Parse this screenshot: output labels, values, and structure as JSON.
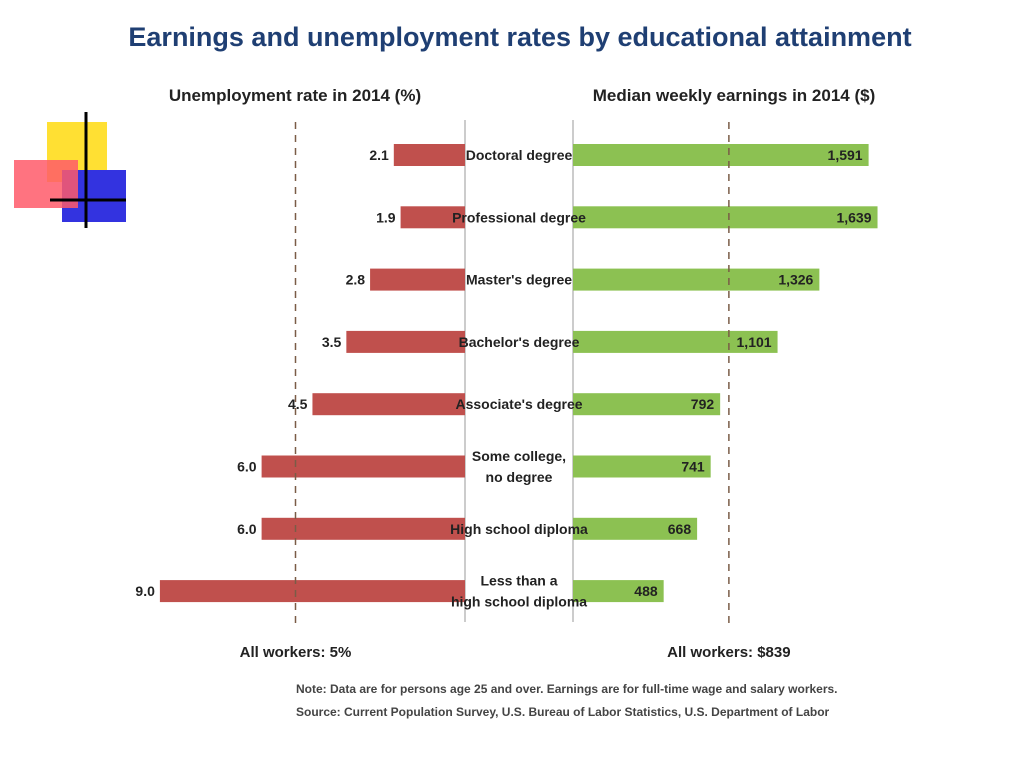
{
  "decor": {
    "colors": {
      "yellow": "#ffe033",
      "red": "#ff5a6a",
      "blue": "#3333e0",
      "line": "#000000"
    }
  },
  "chart_data": {
    "type": "bar",
    "title": "Earnings and unemployment rates by educational attainment",
    "left_panel": {
      "label": "Unemployment rate in 2014 (%)",
      "reference_label": "All workers: 5%",
      "reference_value": 5,
      "color": "#c0504d"
    },
    "right_panel": {
      "label": "Median weekly earnings in 2014 ($)",
      "reference_label": "All workers: $839",
      "reference_value": 839,
      "color": "#8cc152"
    },
    "categories": [
      [
        "Doctoral degree"
      ],
      [
        "Professional degree"
      ],
      [
        "Master's degree"
      ],
      [
        "Bachelor's degree"
      ],
      [
        "Associate's degree"
      ],
      [
        "Some college,",
        "no degree"
      ],
      [
        "High school diploma"
      ],
      [
        "Less than a",
        "high school diploma"
      ]
    ],
    "series": [
      {
        "name": "Unemployment rate in 2014 (%)",
        "values": [
          2.1,
          1.9,
          2.8,
          3.5,
          4.5,
          6.0,
          6.0,
          9.0
        ],
        "labels": [
          "2.1",
          "1.9",
          "2.8",
          "3.5",
          "4.5",
          "6.0",
          "6.0",
          "9.0"
        ]
      },
      {
        "name": "Median weekly earnings in 2014 ($)",
        "values": [
          1591,
          1639,
          1326,
          1101,
          792,
          741,
          668,
          488
        ],
        "labels": [
          "1,591",
          "1,639",
          "1,326",
          "1,101",
          "792",
          "741",
          "668",
          "488"
        ]
      }
    ],
    "notes": [
      "Note: Data are for persons age 25 and over. Earnings are for full-time wage and salary workers.",
      "Source: Current Population Survey, U.S. Bureau of Labor Statistics, U.S. Department of Labor"
    ]
  }
}
